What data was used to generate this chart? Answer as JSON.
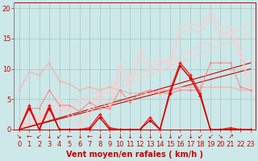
{
  "background_color": "#cce8e8",
  "grid_color": "#aacccc",
  "xlim": [
    -0.5,
    23.5
  ],
  "ylim": [
    0,
    21
  ],
  "xticks": [
    0,
    1,
    2,
    3,
    4,
    5,
    6,
    7,
    8,
    9,
    10,
    11,
    12,
    13,
    14,
    15,
    16,
    17,
    18,
    19,
    20,
    21,
    22,
    23
  ],
  "yticks": [
    0,
    5,
    10,
    15,
    20
  ],
  "xlabel": "Vent moyen/en rafales ( km/h )",
  "xlabel_fontsize": 7,
  "tick_fontsize": 6,
  "tick_color": "#cc0000",
  "axis_color": "#cc0000",
  "series": [
    {
      "label": "flat_pink",
      "color": "#ffaaaa",
      "lw": 0.8,
      "marker": "D",
      "ms": 1.5,
      "x": [
        0,
        1,
        2,
        3,
        4,
        5,
        6,
        7,
        8,
        9,
        10,
        11,
        12,
        13,
        14,
        15,
        16,
        17,
        18,
        19,
        20,
        21,
        22,
        23
      ],
      "y": [
        6.5,
        9.5,
        9.0,
        11.0,
        8.0,
        7.5,
        6.5,
        7.0,
        6.5,
        7.0,
        6.5,
        6.0,
        6.0,
        6.0,
        6.5,
        6.5,
        7.0,
        7.0,
        7.0,
        7.0,
        7.0,
        7.0,
        6.5,
        6.5
      ]
    },
    {
      "label": "light_rafales",
      "color": "#ffcccc",
      "lw": 0.8,
      "marker": "D",
      "ms": 1.5,
      "x": [
        0,
        1,
        2,
        3,
        4,
        5,
        6,
        7,
        8,
        9,
        10,
        11,
        12,
        13,
        14,
        15,
        16,
        17,
        18,
        19,
        20,
        21,
        22,
        23
      ],
      "y": [
        0.5,
        3.0,
        2.0,
        4.5,
        5.0,
        3.0,
        1.0,
        3.5,
        6.0,
        4.0,
        11.0,
        8.5,
        13.0,
        11.0,
        11.5,
        11.0,
        17.0,
        17.5,
        17.0,
        19.5,
        17.0,
        17.0,
        13.0,
        7.0
      ]
    },
    {
      "label": "light_moyen",
      "color": "#ffcccc",
      "lw": 0.8,
      "marker": "D",
      "ms": 1.5,
      "x": [
        0,
        1,
        2,
        3,
        4,
        5,
        6,
        7,
        8,
        9,
        10,
        11,
        12,
        13,
        14,
        15,
        16,
        17,
        18,
        19,
        20,
        21,
        22,
        23
      ],
      "y": [
        0.0,
        2.0,
        1.5,
        3.5,
        4.0,
        2.0,
        0.5,
        2.5,
        5.0,
        3.0,
        10.0,
        7.0,
        12.0,
        10.0,
        10.0,
        10.0,
        16.0,
        16.5,
        16.0,
        18.5,
        16.0,
        16.0,
        12.0,
        6.5
      ]
    },
    {
      "label": "trend_light1",
      "color": "#ffcccc",
      "lw": 1.0,
      "marker": null,
      "ms": 0,
      "x": [
        0,
        23
      ],
      "y": [
        0.5,
        17.5
      ]
    },
    {
      "label": "trend_light2",
      "color": "#ffcccc",
      "lw": 1.0,
      "marker": null,
      "ms": 0,
      "x": [
        0,
        23
      ],
      "y": [
        0.0,
        16.0
      ]
    },
    {
      "label": "medium_line",
      "color": "#ff8888",
      "lw": 0.8,
      "marker": "D",
      "ms": 1.5,
      "x": [
        0,
        1,
        2,
        3,
        4,
        5,
        6,
        7,
        8,
        9,
        10,
        11,
        12,
        13,
        14,
        15,
        16,
        17,
        18,
        19,
        20,
        21,
        22,
        23
      ],
      "y": [
        0.0,
        3.5,
        3.5,
        6.5,
        4.0,
        4.0,
        3.0,
        4.5,
        3.5,
        3.5,
        6.5,
        4.5,
        6.0,
        6.5,
        6.0,
        6.0,
        6.5,
        6.5,
        6.5,
        11.0,
        11.0,
        11.0,
        7.0,
        6.5
      ]
    },
    {
      "label": "dark_red1",
      "color": "#ee2222",
      "lw": 1.0,
      "marker": "D",
      "ms": 2.0,
      "x": [
        0,
        1,
        2,
        3,
        4,
        5,
        6,
        7,
        8,
        9,
        10,
        11,
        12,
        13,
        14,
        15,
        16,
        17,
        18,
        19,
        20,
        21,
        22,
        23
      ],
      "y": [
        0.0,
        4.0,
        0.0,
        4.0,
        0.0,
        0.0,
        0.0,
        0.3,
        2.5,
        0.3,
        0.0,
        0.0,
        0.0,
        2.0,
        0.0,
        6.5,
        11.0,
        9.0,
        6.0,
        0.0,
        0.0,
        0.3,
        0.0,
        0.0
      ]
    },
    {
      "label": "dark_red2",
      "color": "#cc0000",
      "lw": 1.0,
      "marker": "D",
      "ms": 2.0,
      "x": [
        0,
        1,
        2,
        3,
        4,
        5,
        6,
        7,
        8,
        9,
        10,
        11,
        12,
        13,
        14,
        15,
        16,
        17,
        18,
        19,
        20,
        21,
        22,
        23
      ],
      "y": [
        0.0,
        3.5,
        0.0,
        3.5,
        0.0,
        0.0,
        0.0,
        0.0,
        2.0,
        0.0,
        0.0,
        0.0,
        0.0,
        1.5,
        0.0,
        6.0,
        10.5,
        8.5,
        5.5,
        0.0,
        0.0,
        0.0,
        0.0,
        0.0
      ]
    },
    {
      "label": "trend_dark1",
      "color": "#cc0000",
      "lw": 0.8,
      "marker": null,
      "ms": 0,
      "x": [
        0,
        23
      ],
      "y": [
        0.0,
        11.0
      ]
    },
    {
      "label": "trend_dark2",
      "color": "#cc0000",
      "lw": 0.8,
      "marker": null,
      "ms": 0,
      "x": [
        0,
        23
      ],
      "y": [
        0.0,
        10.0
      ]
    }
  ],
  "arrows": [
    "↘",
    "←",
    "↙",
    "↓",
    "↙",
    "←",
    "↓",
    "←",
    "↓",
    "↓",
    "↓",
    "↓",
    "↓",
    "↓",
    "↓",
    "↓",
    "↙",
    "↓",
    "↙",
    "↙",
    "↘",
    "↗",
    "",
    ""
  ]
}
